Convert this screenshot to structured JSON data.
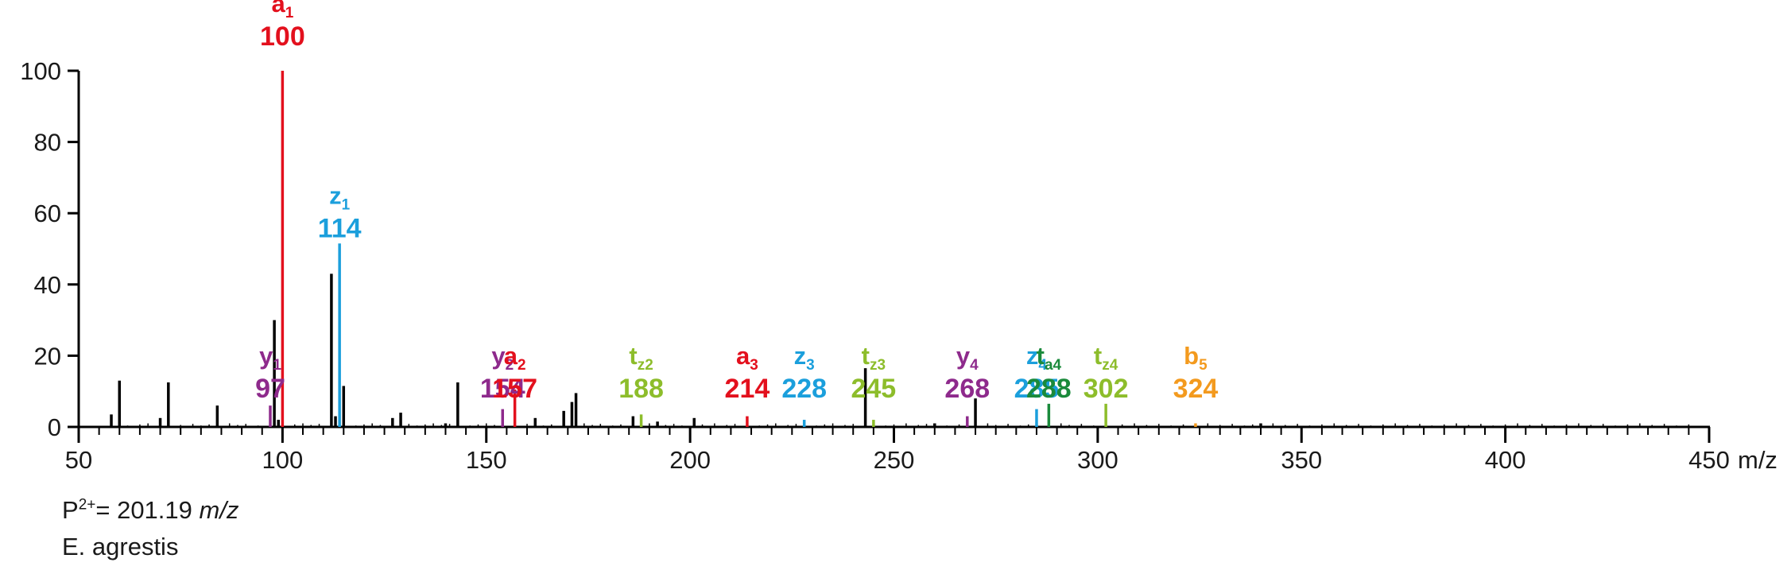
{
  "chart_data": {
    "type": "bar",
    "title": "",
    "xlabel": "m/z",
    "ylabel": "",
    "xlim": [
      50,
      450
    ],
    "ylim": [
      0,
      100
    ],
    "x_ticks": [
      50,
      100,
      150,
      200,
      250,
      300,
      350,
      400,
      450
    ],
    "x_tick_labels": [
      "50",
      "100",
      "150",
      "200",
      "250",
      "300",
      "350",
      "400",
      "450"
    ],
    "x_minor_step": 5,
    "y_ticks": [
      0,
      20,
      40,
      60,
      80,
      100
    ],
    "y_tick_labels": [
      "0",
      "20",
      "40",
      "60",
      "80",
      "100"
    ],
    "colors": {
      "unassigned": "#000000",
      "a": "#e3101d",
      "z": "#1b9fdc",
      "y": "#8e2a8c",
      "tz": "#8dbd2b",
      "ta": "#1a8a3b",
      "b": "#f39a1e"
    },
    "peaks": [
      {
        "mz": 58,
        "intensity": 3.5
      },
      {
        "mz": 60,
        "intensity": 13
      },
      {
        "mz": 70,
        "intensity": 2.5
      },
      {
        "mz": 72,
        "intensity": 12.5
      },
      {
        "mz": 84,
        "intensity": 6
      },
      {
        "mz": 98,
        "intensity": 30
      },
      {
        "mz": 99,
        "intensity": 2
      },
      {
        "mz": 112,
        "intensity": 43
      },
      {
        "mz": 115,
        "intensity": 11.5
      },
      {
        "mz": 113,
        "intensity": 3
      },
      {
        "mz": 127,
        "intensity": 2.5
      },
      {
        "mz": 129,
        "intensity": 4
      },
      {
        "mz": 140,
        "intensity": 1
      },
      {
        "mz": 143,
        "intensity": 12.5
      },
      {
        "mz": 162,
        "intensity": 2.5
      },
      {
        "mz": 169,
        "intensity": 4.5
      },
      {
        "mz": 171,
        "intensity": 7
      },
      {
        "mz": 172,
        "intensity": 9.5
      },
      {
        "mz": 186,
        "intensity": 3
      },
      {
        "mz": 192,
        "intensity": 1.5
      },
      {
        "mz": 201,
        "intensity": 2.5
      },
      {
        "mz": 243,
        "intensity": 16.5
      },
      {
        "mz": 260,
        "intensity": 1
      },
      {
        "mz": 270,
        "intensity": 8
      },
      {
        "mz": 340,
        "intensity": 1
      }
    ],
    "assigned_ions": [
      {
        "ion": "a",
        "sub": "1",
        "mz": 100,
        "label": "100",
        "intensity": 100,
        "series": "a"
      },
      {
        "ion": "z",
        "sub": "1",
        "mz": 114,
        "label": "114",
        "intensity": 51.5,
        "series": "z"
      },
      {
        "ion": "y",
        "sub": "1",
        "mz": 97,
        "label": "97",
        "intensity": 6,
        "series": "y"
      },
      {
        "ion": "y",
        "sub": "2",
        "mz": 154,
        "label": "154",
        "intensity": 5,
        "series": "y"
      },
      {
        "ion": "a",
        "sub": "2",
        "mz": 157,
        "label": "157",
        "intensity": 10.5,
        "series": "a"
      },
      {
        "ion": "t",
        "sub": "z2",
        "mz": 188,
        "label": "188",
        "intensity": 3.5,
        "series": "tz"
      },
      {
        "ion": "a",
        "sub": "3",
        "mz": 214,
        "label": "214",
        "intensity": 3,
        "series": "a"
      },
      {
        "ion": "z",
        "sub": "3",
        "mz": 228,
        "label": "228",
        "intensity": 2,
        "series": "z"
      },
      {
        "ion": "t",
        "sub": "z3",
        "mz": 245,
        "label": "245",
        "intensity": 2,
        "series": "tz"
      },
      {
        "ion": "y",
        "sub": "4",
        "mz": 268,
        "label": "268",
        "intensity": 3,
        "series": "y"
      },
      {
        "ion": "z",
        "sub": "4",
        "mz": 285,
        "label": "285",
        "intensity": 5,
        "series": "z"
      },
      {
        "ion": "t",
        "sub": "a4",
        "mz": 288,
        "label": "288",
        "intensity": 6.5,
        "series": "ta"
      },
      {
        "ion": "t",
        "sub": "z4",
        "mz": 302,
        "label": "302",
        "intensity": 6.5,
        "series": "tz"
      },
      {
        "ion": "b",
        "sub": "5",
        "mz": 324,
        "label": "324",
        "intensity": 1,
        "series": "b"
      }
    ]
  },
  "footer": {
    "precursor_prefix": "P",
    "precursor_charge": "2+",
    "precursor_value": "= 201.19 ",
    "precursor_unit": "m/z",
    "species": "E. agrestis"
  }
}
